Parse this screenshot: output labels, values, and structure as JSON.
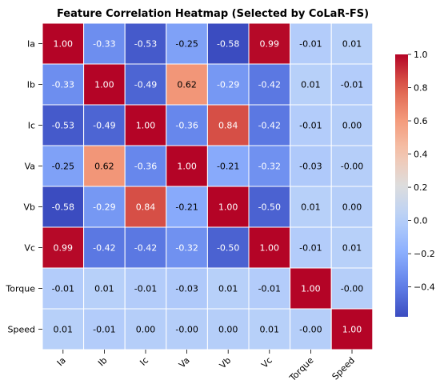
{
  "chart_data": {
    "type": "heatmap",
    "title": "Feature Correlation Heatmap (Selected by CoLaR-FS)",
    "row_labels": [
      "Ia",
      "Ib",
      "Ic",
      "Va",
      "Vb",
      "Vc",
      "Torque",
      "Speed"
    ],
    "col_labels": [
      "Ia",
      "Ib",
      "Ic",
      "Va",
      "Vb",
      "Vc",
      "Torque",
      "Speed"
    ],
    "values": [
      [
        1.0,
        -0.33,
        -0.53,
        -0.25,
        -0.58,
        0.99,
        -0.01,
        0.01
      ],
      [
        -0.33,
        1.0,
        -0.49,
        0.62,
        -0.29,
        -0.42,
        0.01,
        -0.01
      ],
      [
        -0.53,
        -0.49,
        1.0,
        -0.36,
        0.84,
        -0.42,
        -0.01,
        0.0
      ],
      [
        -0.25,
        0.62,
        -0.36,
        1.0,
        -0.21,
        -0.32,
        -0.03,
        -0.0
      ],
      [
        -0.58,
        -0.29,
        0.84,
        -0.21,
        1.0,
        -0.5,
        0.01,
        0.0
      ],
      [
        0.99,
        -0.42,
        -0.42,
        -0.32,
        -0.5,
        1.0,
        -0.01,
        0.01
      ],
      [
        -0.01,
        0.01,
        -0.01,
        -0.03,
        0.01,
        -0.01,
        1.0,
        -0.0
      ],
      [
        0.01,
        -0.01,
        0.0,
        -0.0,
        0.0,
        0.01,
        -0.0,
        1.0
      ]
    ],
    "cell_text": [
      [
        "1.00",
        "-0.33",
        "-0.53",
        "-0.25",
        "-0.58",
        "0.99",
        "-0.01",
        "0.01"
      ],
      [
        "-0.33",
        "1.00",
        "-0.49",
        "0.62",
        "-0.29",
        "-0.42",
        "0.01",
        "-0.01"
      ],
      [
        "-0.53",
        "-0.49",
        "1.00",
        "-0.36",
        "0.84",
        "-0.42",
        "-0.01",
        "0.00"
      ],
      [
        "-0.25",
        "0.62",
        "-0.36",
        "1.00",
        "-0.21",
        "-0.32",
        "-0.03",
        "-0.00"
      ],
      [
        "-0.58",
        "-0.29",
        "0.84",
        "-0.21",
        "1.00",
        "-0.50",
        "0.01",
        "0.00"
      ],
      [
        "0.99",
        "-0.42",
        "-0.42",
        "-0.32",
        "-0.50",
        "1.00",
        "-0.01",
        "0.01"
      ],
      [
        "-0.01",
        "0.01",
        "-0.01",
        "-0.03",
        "0.01",
        "-0.01",
        "1.00",
        "-0.00"
      ],
      [
        "0.01",
        "-0.01",
        "0.00",
        "-0.00",
        "0.00",
        "0.01",
        "-0.00",
        "1.00"
      ]
    ],
    "colormap": "coolwarm",
    "colorbar": {
      "vmin": -0.58,
      "vmax": 1.0,
      "ticks": [
        1.0,
        0.8,
        0.6,
        0.4,
        0.2,
        0.0,
        -0.2,
        -0.4
      ],
      "tick_labels": [
        "1.0",
        "0.8",
        "0.6",
        "0.4",
        "0.2",
        "0.0",
        "−0.2",
        "−0.4"
      ],
      "position": "right"
    },
    "xlabel": "",
    "ylabel": "",
    "grid_lines_color": "#ffffff"
  }
}
